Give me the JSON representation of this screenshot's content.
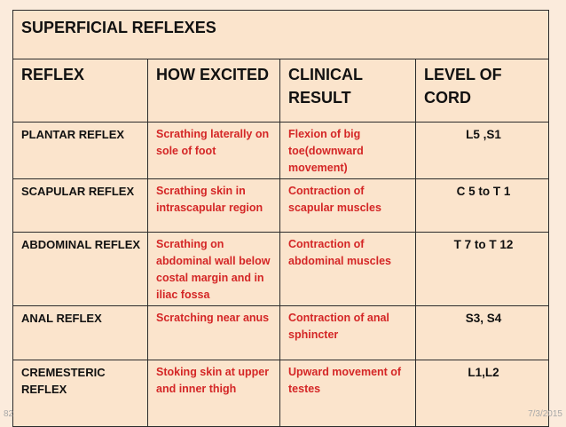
{
  "table": {
    "title": "SUPERFICIAL REFLEXES",
    "headers": [
      "REFLEX",
      "HOW EXCITED",
      "CLINICAL RESULT",
      "LEVEL OF CORD"
    ],
    "rows": [
      {
        "reflex": "PLANTAR REFLEX",
        "how_excited": "Scrathing laterally on sole of foot",
        "clinical_result": "Flexion of big toe(downward movement)",
        "level": "L5 ,S1"
      },
      {
        "reflex": "SCAPULAR REFLEX",
        "how_excited": "Scrathing skin in intrascapular region",
        "clinical_result": "Contraction of scapular muscles",
        "level": "C 5 to T 1"
      },
      {
        "reflex": "ABDOMINAL REFLEX",
        "how_excited": "Scrathing on abdominal wall below costal margin and in iliac fossa",
        "clinical_result": "Contraction of abdominal muscles",
        "level": "T 7 to T 12"
      },
      {
        "reflex": "ANAL REFLEX",
        "how_excited": "Scratching near anus",
        "clinical_result": "Contraction of anal sphincter",
        "level": "S3, S4"
      },
      {
        "reflex": "CREMESTERIC REFLEX",
        "how_excited": "Stoking skin at upper and inner thigh",
        "clinical_result": "Upward movement of testes",
        "level": "L1,L2"
      }
    ]
  },
  "footer": {
    "page_number": "82",
    "date": "7/3/2015"
  },
  "colors": {
    "background": "#fbebdc",
    "table_fill": "#fbe4cc",
    "accent_text": "#d42626",
    "body_text": "#111111"
  }
}
